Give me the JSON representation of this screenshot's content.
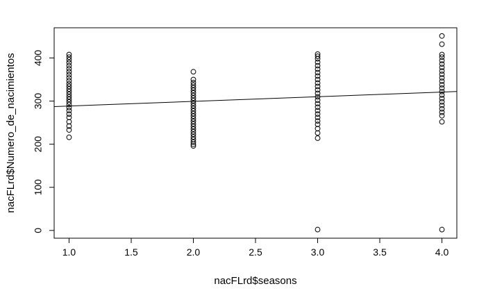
{
  "chart_data": {
    "type": "scatter",
    "title": "",
    "xlabel": "nacFLrd$seasons",
    "ylabel": "nacFLrd$Numero_de_nacimientos",
    "xlim": [
      0.88,
      4.12
    ],
    "ylim": [
      -18,
      470
    ],
    "x_ticks": [
      {
        "value": 1.0,
        "label": "1.0"
      },
      {
        "value": 1.5,
        "label": "1.5"
      },
      {
        "value": 2.0,
        "label": "2.0"
      },
      {
        "value": 2.5,
        "label": "2.5"
      },
      {
        "value": 3.0,
        "label": "3.0"
      },
      {
        "value": 3.5,
        "label": "3.5"
      },
      {
        "value": 4.0,
        "label": "4.0"
      }
    ],
    "y_ticks": [
      {
        "value": 0,
        "label": "0"
      },
      {
        "value": 100,
        "label": "100"
      },
      {
        "value": 200,
        "label": "200"
      },
      {
        "value": 300,
        "label": "300"
      },
      {
        "value": 400,
        "label": "400"
      }
    ],
    "series": [
      {
        "marker": "open-circle",
        "points": [
          {
            "x": 1.0,
            "y": 216
          },
          {
            "x": 1.0,
            "y": 233
          },
          {
            "x": 1.0,
            "y": 242
          },
          {
            "x": 1.0,
            "y": 252
          },
          {
            "x": 1.0,
            "y": 262
          },
          {
            "x": 1.0,
            "y": 270
          },
          {
            "x": 1.0,
            "y": 278
          },
          {
            "x": 1.0,
            "y": 285
          },
          {
            "x": 1.0,
            "y": 292
          },
          {
            "x": 1.0,
            "y": 298
          },
          {
            "x": 1.0,
            "y": 304
          },
          {
            "x": 1.0,
            "y": 310
          },
          {
            "x": 1.0,
            "y": 316
          },
          {
            "x": 1.0,
            "y": 322
          },
          {
            "x": 1.0,
            "y": 328
          },
          {
            "x": 1.0,
            "y": 334
          },
          {
            "x": 1.0,
            "y": 340
          },
          {
            "x": 1.0,
            "y": 347
          },
          {
            "x": 1.0,
            "y": 354
          },
          {
            "x": 1.0,
            "y": 361
          },
          {
            "x": 1.0,
            "y": 368
          },
          {
            "x": 1.0,
            "y": 375
          },
          {
            "x": 1.0,
            "y": 382
          },
          {
            "x": 1.0,
            "y": 389
          },
          {
            "x": 1.0,
            "y": 396
          },
          {
            "x": 1.0,
            "y": 402
          },
          {
            "x": 1.0,
            "y": 408
          },
          {
            "x": 2.0,
            "y": 196
          },
          {
            "x": 2.0,
            "y": 200
          },
          {
            "x": 2.0,
            "y": 205
          },
          {
            "x": 2.0,
            "y": 211
          },
          {
            "x": 2.0,
            "y": 217
          },
          {
            "x": 2.0,
            "y": 223
          },
          {
            "x": 2.0,
            "y": 229
          },
          {
            "x": 2.0,
            "y": 235
          },
          {
            "x": 2.0,
            "y": 241
          },
          {
            "x": 2.0,
            "y": 247
          },
          {
            "x": 2.0,
            "y": 253
          },
          {
            "x": 2.0,
            "y": 259
          },
          {
            "x": 2.0,
            "y": 265
          },
          {
            "x": 2.0,
            "y": 271
          },
          {
            "x": 2.0,
            "y": 277
          },
          {
            "x": 2.0,
            "y": 283
          },
          {
            "x": 2.0,
            "y": 289
          },
          {
            "x": 2.0,
            "y": 295
          },
          {
            "x": 2.0,
            "y": 301
          },
          {
            "x": 2.0,
            "y": 307
          },
          {
            "x": 2.0,
            "y": 313
          },
          {
            "x": 2.0,
            "y": 319
          },
          {
            "x": 2.0,
            "y": 325
          },
          {
            "x": 2.0,
            "y": 331
          },
          {
            "x": 2.0,
            "y": 337
          },
          {
            "x": 2.0,
            "y": 343
          },
          {
            "x": 2.0,
            "y": 350
          },
          {
            "x": 2.0,
            "y": 368
          },
          {
            "x": 3.0,
            "y": 2
          },
          {
            "x": 3.0,
            "y": 214
          },
          {
            "x": 3.0,
            "y": 226
          },
          {
            "x": 3.0,
            "y": 236
          },
          {
            "x": 3.0,
            "y": 246
          },
          {
            "x": 3.0,
            "y": 254
          },
          {
            "x": 3.0,
            "y": 262
          },
          {
            "x": 3.0,
            "y": 270
          },
          {
            "x": 3.0,
            "y": 278
          },
          {
            "x": 3.0,
            "y": 286
          },
          {
            "x": 3.0,
            "y": 294
          },
          {
            "x": 3.0,
            "y": 302
          },
          {
            "x": 3.0,
            "y": 310
          },
          {
            "x": 3.0,
            "y": 318
          },
          {
            "x": 3.0,
            "y": 326
          },
          {
            "x": 3.0,
            "y": 334
          },
          {
            "x": 3.0,
            "y": 342
          },
          {
            "x": 3.0,
            "y": 350
          },
          {
            "x": 3.0,
            "y": 358
          },
          {
            "x": 3.0,
            "y": 366
          },
          {
            "x": 3.0,
            "y": 374
          },
          {
            "x": 3.0,
            "y": 382
          },
          {
            "x": 3.0,
            "y": 390
          },
          {
            "x": 3.0,
            "y": 398
          },
          {
            "x": 3.0,
            "y": 404
          },
          {
            "x": 3.0,
            "y": 409
          },
          {
            "x": 4.0,
            "y": 2
          },
          {
            "x": 4.0,
            "y": 252
          },
          {
            "x": 4.0,
            "y": 266
          },
          {
            "x": 4.0,
            "y": 274
          },
          {
            "x": 4.0,
            "y": 282
          },
          {
            "x": 4.0,
            "y": 290
          },
          {
            "x": 4.0,
            "y": 298
          },
          {
            "x": 4.0,
            "y": 306
          },
          {
            "x": 4.0,
            "y": 314
          },
          {
            "x": 4.0,
            "y": 322
          },
          {
            "x": 4.0,
            "y": 330
          },
          {
            "x": 4.0,
            "y": 338
          },
          {
            "x": 4.0,
            "y": 346
          },
          {
            "x": 4.0,
            "y": 354
          },
          {
            "x": 4.0,
            "y": 362
          },
          {
            "x": 4.0,
            "y": 370
          },
          {
            "x": 4.0,
            "y": 378
          },
          {
            "x": 4.0,
            "y": 386
          },
          {
            "x": 4.0,
            "y": 394
          },
          {
            "x": 4.0,
            "y": 402
          },
          {
            "x": 4.0,
            "y": 408
          },
          {
            "x": 4.0,
            "y": 432
          },
          {
            "x": 4.0,
            "y": 451
          }
        ]
      }
    ],
    "fit_line": {
      "type": "linear",
      "x": [
        0.88,
        4.12
      ],
      "y": [
        287.2,
        322.2
      ]
    },
    "grid": false,
    "legend": "none"
  }
}
